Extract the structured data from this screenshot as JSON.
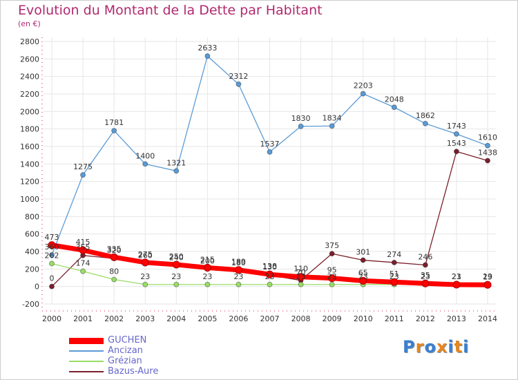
{
  "title": "Evolution du Montant de la Dette par Habitant",
  "unit": "(en €)",
  "logo": "Proxiti",
  "colors": {
    "title": "#b0296f",
    "axis": "#d2163c",
    "grid": "#e6e6e6",
    "background": "#ffffff",
    "legend_text": "#6666cc"
  },
  "chart_data": {
    "type": "line",
    "x": [
      "2000",
      "2001",
      "2002",
      "2003",
      "2004",
      "2005",
      "2006",
      "2007",
      "2008",
      "2009",
      "2010",
      "2011",
      "2012",
      "2013",
      "2014"
    ],
    "ylim": [
      -200,
      2800
    ],
    "yticks": [
      -200,
      0,
      200,
      400,
      600,
      800,
      1000,
      1200,
      1400,
      1600,
      1800,
      2000,
      2200,
      2400,
      2600,
      2800
    ],
    "grid": true,
    "legend_position": "bottom-left",
    "series": [
      {
        "name": "GUCHEN",
        "color": "#ff0000",
        "values": [
          473,
          415,
          335,
          275,
          250,
          215,
          189,
          138,
          110,
          95,
          65,
          51,
          35,
          21,
          19
        ]
      },
      {
        "name": "Ancizan",
        "color": "#5b9bd5",
        "values": [
          360,
          1275,
          1781,
          1400,
          1321,
          2633,
          2312,
          1537,
          1830,
          1834,
          2203,
          2048,
          1862,
          1743,
          1610
        ]
      },
      {
        "name": "Grézian",
        "color": "#99dd66",
        "values": [
          262,
          174,
          80,
          23,
          23,
          23,
          23,
          23,
          23,
          23,
          23,
          23,
          23,
          23,
          23
        ]
      },
      {
        "name": "Bazus-Aure",
        "color": "#7a1f2b",
        "values": [
          0,
          355,
          320,
          260,
          240,
          200,
          180,
          130,
          70,
          375,
          301,
          274,
          246,
          1543,
          1438
        ]
      }
    ]
  }
}
